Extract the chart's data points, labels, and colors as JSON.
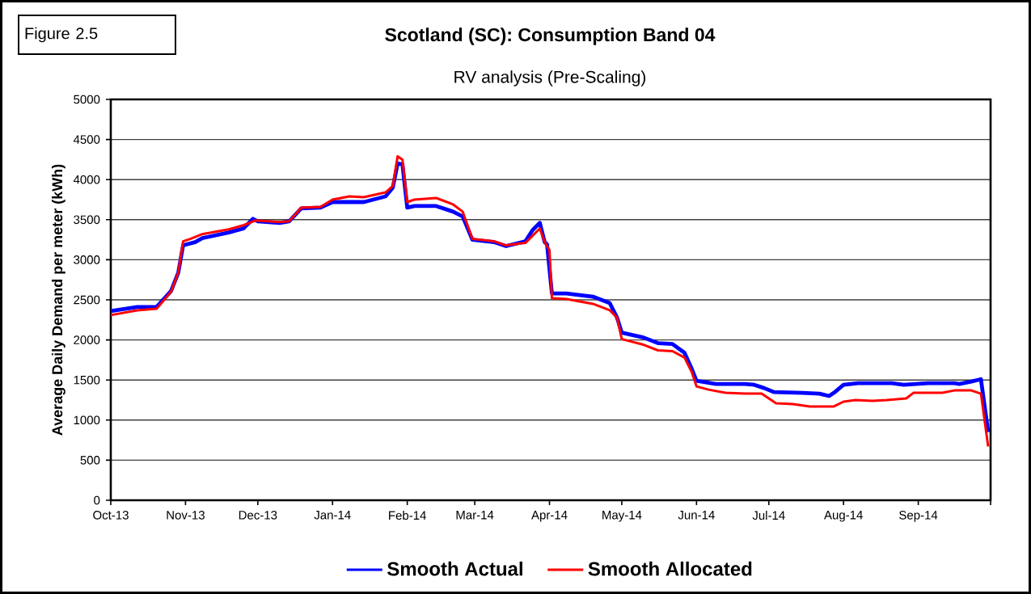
{
  "chart_data": {
    "type": "line",
    "title": "Scotland (SC):  Consumption Band 04",
    "subtitle": "RV analysis (Pre-Scaling)",
    "ylabel": "Average Daily Demand per meter (kWh)",
    "annotations": [
      "Figure 2.5"
    ],
    "xlim": [
      "2013-10-01",
      "2014-10-01"
    ],
    "ylim": [
      0,
      5000
    ],
    "xticks": [
      {
        "value": "2013-10-01",
        "label": "Oct-13"
      },
      {
        "value": "2013-11-01",
        "label": "Nov-13"
      },
      {
        "value": "2013-12-01",
        "label": "Dec-13"
      },
      {
        "value": "2014-01-01",
        "label": "Jan-14"
      },
      {
        "value": "2014-02-01",
        "label": "Feb-14"
      },
      {
        "value": "2014-03-01",
        "label": "Mar-14"
      },
      {
        "value": "2014-04-01",
        "label": "Apr-14"
      },
      {
        "value": "2014-05-01",
        "label": "May-14"
      },
      {
        "value": "2014-06-01",
        "label": "Jun-14"
      },
      {
        "value": "2014-07-01",
        "label": "Jul-14"
      },
      {
        "value": "2014-08-01",
        "label": "Aug-14"
      },
      {
        "value": "2014-09-01",
        "label": "Sep-14"
      },
      {
        "value": "2014-10-01",
        "label": null
      }
    ],
    "yticks": [
      0,
      500,
      1000,
      1500,
      2000,
      2500,
      3000,
      3500,
      4000,
      4500,
      5000
    ],
    "grid": "y",
    "legend": "bottom",
    "series": [
      {
        "name": "Smooth Actual",
        "color": "#0000ff",
        "x": [
          "2013-10-01",
          "2013-10-12",
          "2013-10-20",
          "2013-10-26",
          "2013-10-29",
          "2013-10-31",
          "2013-11-05",
          "2013-11-08",
          "2013-11-19",
          "2013-11-25",
          "2013-11-29",
          "2013-12-01",
          "2013-12-10",
          "2013-12-14",
          "2013-12-19",
          "2013-12-27",
          "2014-01-01",
          "2014-01-14",
          "2014-01-23",
          "2014-01-26",
          "2014-01-28",
          "2014-01-30",
          "2014-02-01",
          "2014-02-04",
          "2014-02-13",
          "2014-02-20",
          "2014-02-24",
          "2014-02-28",
          "2014-03-09",
          "2014-03-14",
          "2014-03-22",
          "2014-03-25",
          "2014-03-28",
          "2014-03-30",
          "2014-03-31",
          "2014-04-02",
          "2014-04-08",
          "2014-04-19",
          "2014-04-26",
          "2014-04-29",
          "2014-05-01",
          "2014-05-10",
          "2014-05-16",
          "2014-05-22",
          "2014-05-27",
          "2014-05-30",
          "2014-06-01",
          "2014-06-09",
          "2014-06-21",
          "2014-06-25",
          "2014-06-29",
          "2014-07-03",
          "2014-07-15",
          "2014-07-22",
          "2014-07-26",
          "2014-07-28",
          "2014-08-01",
          "2014-08-07",
          "2014-08-21",
          "2014-08-26",
          "2014-09-05",
          "2014-09-16",
          "2014-09-18",
          "2014-09-23",
          "2014-09-27",
          "2014-09-30"
        ],
        "values": [
          2360,
          2410,
          2410,
          2610,
          2840,
          3180,
          3220,
          3270,
          3340,
          3390,
          3510,
          3480,
          3460,
          3480,
          3640,
          3650,
          3720,
          3720,
          3790,
          3900,
          4200,
          4190,
          3650,
          3670,
          3670,
          3600,
          3540,
          3250,
          3220,
          3170,
          3230,
          3370,
          3460,
          3220,
          3190,
          2580,
          2580,
          2540,
          2460,
          2280,
          2090,
          2030,
          1960,
          1950,
          1840,
          1640,
          1490,
          1450,
          1450,
          1440,
          1400,
          1350,
          1340,
          1330,
          1300,
          1340,
          1440,
          1460,
          1460,
          1440,
          1460,
          1460,
          1450,
          1480,
          1510,
          850
        ]
      },
      {
        "name": "Smooth Allocated",
        "color": "#ff0000",
        "x": [
          "2013-10-01",
          "2013-10-12",
          "2013-10-20",
          "2013-10-26",
          "2013-10-29",
          "2013-10-31",
          "2013-11-03",
          "2013-11-08",
          "2013-11-19",
          "2013-11-25",
          "2013-11-30",
          "2013-12-10",
          "2013-12-14",
          "2013-12-19",
          "2013-12-27",
          "2014-01-01",
          "2014-01-08",
          "2014-01-14",
          "2014-01-23",
          "2014-01-26",
          "2014-01-28",
          "2014-01-30",
          "2014-02-01",
          "2014-02-04",
          "2014-02-13",
          "2014-02-20",
          "2014-02-24",
          "2014-02-28",
          "2014-03-09",
          "2014-03-14",
          "2014-03-22",
          "2014-03-25",
          "2014-03-28",
          "2014-03-30",
          "2014-04-01",
          "2014-04-02",
          "2014-04-08",
          "2014-04-19",
          "2014-04-26",
          "2014-04-29",
          "2014-05-01",
          "2014-05-10",
          "2014-05-16",
          "2014-05-22",
          "2014-05-27",
          "2014-05-30",
          "2014-06-01",
          "2014-06-06",
          "2014-06-13",
          "2014-06-21",
          "2014-06-28",
          "2014-07-01",
          "2014-07-04",
          "2014-07-11",
          "2014-07-18",
          "2014-07-28",
          "2014-08-01",
          "2014-08-06",
          "2014-08-13",
          "2014-08-19",
          "2014-08-27",
          "2014-08-30",
          "2014-09-11",
          "2014-09-16",
          "2014-09-23",
          "2014-09-27",
          "2014-09-30"
        ],
        "values": [
          2310,
          2370,
          2390,
          2600,
          2840,
          3230,
          3260,
          3320,
          3380,
          3430,
          3490,
          3470,
          3480,
          3650,
          3660,
          3750,
          3790,
          3780,
          3840,
          3920,
          4290,
          4250,
          3720,
          3750,
          3770,
          3690,
          3600,
          3260,
          3230,
          3180,
          3210,
          3300,
          3390,
          3220,
          3120,
          2520,
          2510,
          2450,
          2370,
          2280,
          2010,
          1940,
          1870,
          1860,
          1780,
          1600,
          1420,
          1380,
          1340,
          1330,
          1330,
          1270,
          1210,
          1200,
          1170,
          1170,
          1230,
          1250,
          1240,
          1250,
          1270,
          1340,
          1340,
          1370,
          1370,
          1330,
          670
        ]
      }
    ]
  }
}
